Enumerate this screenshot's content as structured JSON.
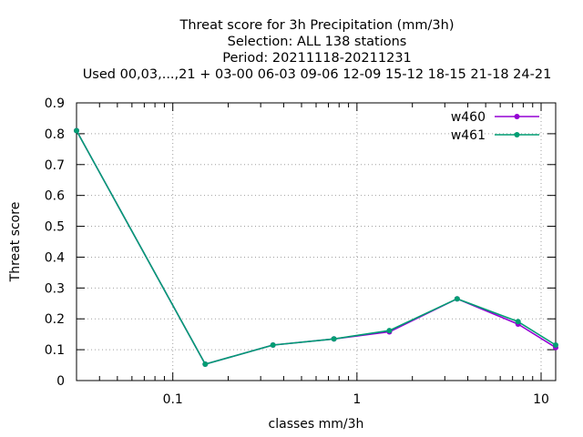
{
  "chart_data": {
    "type": "line",
    "title_lines": [
      "Threat score  for 3h Precipitation (mm/3h)",
      "Selection: ALL    138 stations",
      "Period: 20211118-20211231",
      "Used  00,03,...,21  + 03-00 06-03 09-06 12-09 15-12 18-15 21-18 24-21"
    ],
    "xlabel": "classes mm/3h",
    "ylabel": "Threat score",
    "x_scale": "log",
    "xlim": [
      0.03,
      12
    ],
    "ylim": [
      0,
      0.9
    ],
    "x_ticks": [
      0.1,
      1,
      10
    ],
    "x_tick_labels": [
      "0.1",
      "1",
      "10"
    ],
    "y_ticks": [
      0,
      0.1,
      0.2,
      0.3,
      0.4,
      0.5,
      0.6,
      0.7,
      0.8,
      0.9
    ],
    "y_tick_labels": [
      "0",
      "0.1",
      "0.2",
      "0.3",
      "0.4",
      "0.5",
      "0.6",
      "0.7",
      "0.8",
      "0.9"
    ],
    "grid": true,
    "legend_position": "top-right",
    "series": [
      {
        "name": "w460",
        "color": "#9400d3",
        "x": [
          0.03,
          0.15,
          0.35,
          0.75,
          1.5,
          3.5,
          7.5,
          12
        ],
        "y": [
          0.81,
          0.053,
          0.115,
          0.135,
          0.158,
          0.265,
          0.183,
          0.107
        ]
      },
      {
        "name": "w461",
        "color": "#009e73",
        "x": [
          0.03,
          0.15,
          0.35,
          0.75,
          1.5,
          3.5,
          7.5,
          12
        ],
        "y": [
          0.81,
          0.053,
          0.115,
          0.135,
          0.162,
          0.265,
          0.191,
          0.115
        ]
      }
    ]
  }
}
